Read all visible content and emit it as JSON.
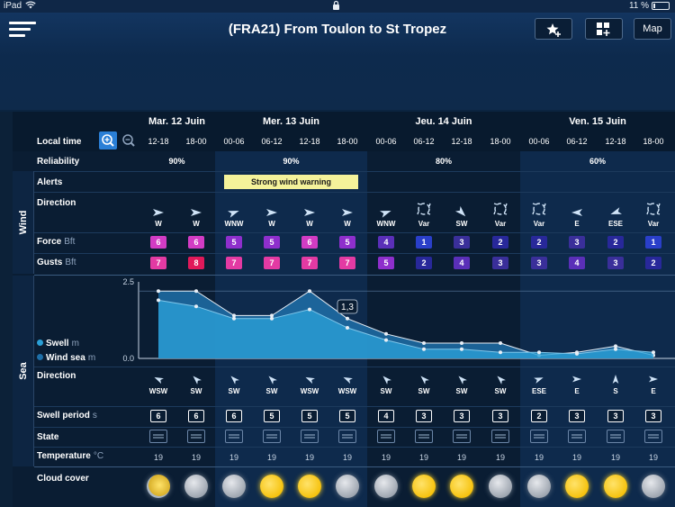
{
  "status": {
    "carrier": "iPad",
    "battery": "11 %",
    "battery_level": 0.11
  },
  "header": {
    "title": "(FRA21) From Toulon to St Tropez",
    "map_label": "Map"
  },
  "sections": {
    "wind": "Wind",
    "sea": "Sea"
  },
  "labels": {
    "local_time": "Local time",
    "reliability": "Reliability",
    "alerts": "Alerts",
    "direction": "Direction",
    "force": "Force",
    "force_unit": "Bft",
    "gusts": "Gusts",
    "gusts_unit": "Bft",
    "swell": "Swell",
    "swell_unit": "m",
    "wind_sea": "Wind sea",
    "wind_sea_unit": "m",
    "sea_direction": "Direction",
    "swell_period": "Swell period",
    "swell_period_unit": "s",
    "state": "State",
    "temperature": "Temperature",
    "temperature_unit": "°C",
    "cloud_cover": "Cloud cover"
  },
  "days": [
    "Mar. 12 Juin",
    "Mer. 13 Juin",
    "Jeu. 14 Juin",
    "Ven. 15 Juin"
  ],
  "times": [
    "12-18",
    "18-00",
    "00-06",
    "06-12",
    "12-18",
    "18-00",
    "00-06",
    "06-12",
    "12-18",
    "18-00",
    "00-06",
    "06-12",
    "12-18",
    "18-00"
  ],
  "reliability": [
    "90%",
    "90%",
    "80%",
    "60%"
  ],
  "alert": "Strong wind warning",
  "wind_dir": [
    "W",
    "W",
    "WNW",
    "W",
    "W",
    "W",
    "WNW",
    "Var",
    "SW",
    "Var",
    "Var",
    "E",
    "ESE",
    "Var"
  ],
  "force": [
    6,
    6,
    5,
    5,
    6,
    5,
    4,
    1,
    3,
    2,
    2,
    3,
    2,
    1
  ],
  "gusts": [
    7,
    8,
    7,
    7,
    7,
    7,
    5,
    2,
    4,
    3,
    3,
    4,
    3,
    2
  ],
  "sea_dir": [
    "WSW",
    "SW",
    "SW",
    "SW",
    "WSW",
    "WSW",
    "SW",
    "SW",
    "SW",
    "SW",
    "ESE",
    "E",
    "S",
    "E"
  ],
  "swell_period": [
    6,
    6,
    6,
    5,
    5,
    5,
    4,
    3,
    3,
    3,
    2,
    3,
    3,
    3
  ],
  "temperature": [
    19,
    19,
    19,
    19,
    19,
    19,
    19,
    19,
    19,
    19,
    19,
    19,
    19,
    19
  ],
  "cloud": [
    "partly-cloudy",
    "moon",
    "moon",
    "sun",
    "sun",
    "moon",
    "moon",
    "sun",
    "sun",
    "moon",
    "moon",
    "sun",
    "sun",
    "moon"
  ],
  "chart_data": {
    "type": "area",
    "y_axis": {
      "max": 2.5,
      "min": 0.0,
      "max_label": "2.5",
      "min_label": "0.0"
    },
    "tooltip": "1,3",
    "series": [
      {
        "name": "Swell",
        "color": "#2a9fd6",
        "values": [
          1.9,
          1.7,
          1.3,
          1.3,
          1.6,
          1.0,
          0.6,
          0.3,
          0.3,
          0.2,
          0.2,
          0.15,
          0.3,
          0.2
        ]
      },
      {
        "name": "Wind sea",
        "color": "#1e6fa8",
        "values": [
          2.2,
          2.2,
          1.4,
          1.4,
          2.2,
          1.3,
          0.8,
          0.5,
          0.5,
          0.5,
          0.1,
          0.2,
          0.4,
          0.1
        ]
      }
    ]
  },
  "colors": {
    "force_scale": {
      "1": "#2a3fc9",
      "2": "#28289a",
      "3": "#3a2f9a",
      "4": "#5a2fb8",
      "5": "#8e2fcc",
      "6": "#d23cc4",
      "7": "#e33aa3",
      "8": "#e0195a"
    }
  }
}
